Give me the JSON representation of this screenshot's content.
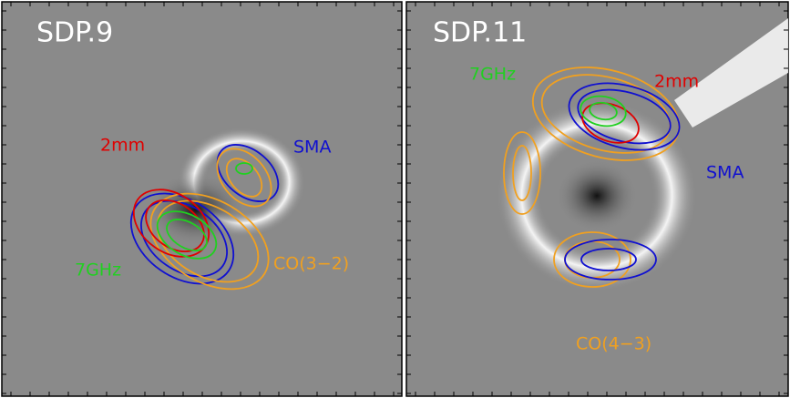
{
  "panels": [
    {
      "title": "SDP.9",
      "labels": [
        "2mm",
        "SMA",
        "7GHz",
        "CO(3−2)"
      ]
    },
    {
      "title": "SDP.11",
      "labels": [
        "7GHz",
        "2mm",
        "SMA",
        "CO(4−3)"
      ]
    }
  ]
}
